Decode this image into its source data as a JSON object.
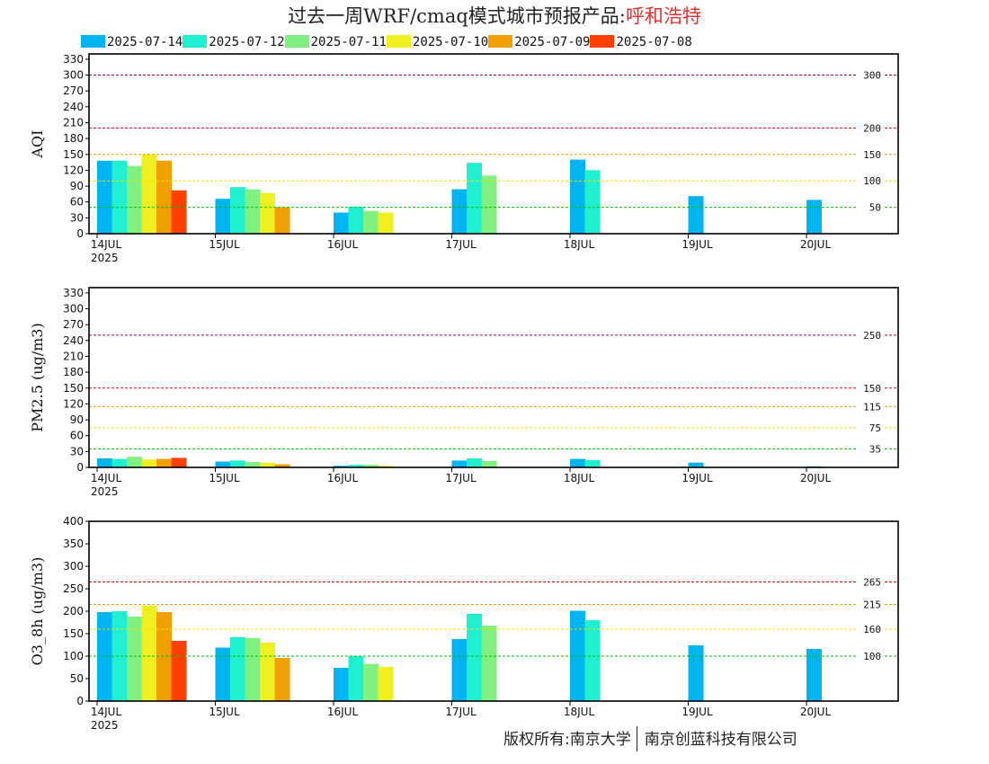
{
  "title": {
    "prefix": "过去一周WRF/cmaq模式城市预报产品:",
    "city": "呼和浩特"
  },
  "footer": {
    "left": "版权所有:南京大学",
    "right": "南京创蓝科技有限公司"
  },
  "colors": {
    "forecast_runs": [
      "#00b4f0",
      "#20f0d0",
      "#80f080",
      "#f0f020",
      "#f0a000",
      "#ff4000"
    ],
    "threshold_lines": {
      "green": "#00c000",
      "yellow": "#f0e000",
      "orange": "#f0a000",
      "red": "#e00000",
      "purple": "#a00060"
    }
  },
  "chart_data": [
    {
      "type": "bar",
      "ylabel": "AQI",
      "ylim": [
        0,
        340
      ],
      "yticks": [
        0,
        30,
        60,
        90,
        120,
        150,
        180,
        210,
        240,
        270,
        300,
        330
      ],
      "x_tick_labels": [
        "14JUL",
        "15JUL",
        "16JUL",
        "17JUL",
        "18JUL",
        "19JUL",
        "20JUL"
      ],
      "x_year_label": "2025",
      "legend": [
        "2025-07-14",
        "2025-07-12",
        "2025-07-11",
        "2025-07-10",
        "2025-07-09",
        "2025-07-08"
      ],
      "thresholds": [
        {
          "value": 50,
          "label": "50",
          "color": "green"
        },
        {
          "value": 100,
          "label": "100",
          "color": "yellow"
        },
        {
          "value": 150,
          "label": "150",
          "color": "orange"
        },
        {
          "value": 200,
          "label": "200",
          "color": "red"
        },
        {
          "value": 300,
          "label": "300",
          "color": "purple"
        }
      ],
      "series": [
        {
          "name": "2025-07-14",
          "values": [
            138,
            66,
            40,
            84,
            140,
            71,
            64
          ]
        },
        {
          "name": "2025-07-12",
          "values": [
            138,
            88,
            51,
            134,
            120,
            null,
            null
          ]
        },
        {
          "name": "2025-07-11",
          "values": [
            128,
            84,
            43,
            110,
            null,
            null,
            null
          ]
        },
        {
          "name": "2025-07-10",
          "values": [
            150,
            77,
            40,
            null,
            null,
            null,
            null
          ]
        },
        {
          "name": "2025-07-09",
          "values": [
            138,
            50,
            null,
            null,
            null,
            null,
            null
          ]
        },
        {
          "name": "2025-07-08",
          "values": [
            82,
            null,
            null,
            null,
            null,
            null,
            null
          ]
        }
      ]
    },
    {
      "type": "bar",
      "ylabel": "PM2.5 (ug/m3)",
      "ylim": [
        0,
        340
      ],
      "yticks": [
        0,
        30,
        60,
        90,
        120,
        150,
        180,
        210,
        240,
        270,
        300,
        330
      ],
      "x_tick_labels": [
        "14JUL",
        "15JUL",
        "16JUL",
        "17JUL",
        "18JUL",
        "19JUL",
        "20JUL"
      ],
      "x_year_label": "2025",
      "thresholds": [
        {
          "value": 35,
          "label": "35",
          "color": "green"
        },
        {
          "value": 75,
          "label": "75",
          "color": "yellow"
        },
        {
          "value": 115,
          "label": "115",
          "color": "orange"
        },
        {
          "value": 150,
          "label": "150",
          "color": "red"
        },
        {
          "value": 250,
          "label": "250",
          "color": "purple"
        }
      ],
      "series": [
        {
          "name": "2025-07-14",
          "values": [
            17,
            11,
            3,
            13,
            16,
            9,
            2
          ]
        },
        {
          "name": "2025-07-12",
          "values": [
            16,
            13,
            5,
            17,
            14,
            null,
            null
          ]
        },
        {
          "name": "2025-07-11",
          "values": [
            20,
            10,
            5,
            12,
            null,
            null,
            null
          ]
        },
        {
          "name": "2025-07-10",
          "values": [
            15,
            9,
            3,
            null,
            null,
            null,
            null
          ]
        },
        {
          "name": "2025-07-09",
          "values": [
            16,
            6,
            null,
            null,
            null,
            null,
            null
          ]
        },
        {
          "name": "2025-07-08",
          "values": [
            18,
            null,
            null,
            null,
            null,
            null,
            null
          ]
        }
      ]
    },
    {
      "type": "bar",
      "ylabel": "O3_8h (ug/m3)",
      "ylim": [
        0,
        400
      ],
      "yticks": [
        0,
        50,
        100,
        150,
        200,
        250,
        300,
        350,
        400
      ],
      "x_tick_labels": [
        "14JUL",
        "15JUL",
        "16JUL",
        "17JUL",
        "18JUL",
        "19JUL",
        "20JUL"
      ],
      "x_year_label": "2025",
      "thresholds": [
        {
          "value": 100,
          "label": "100",
          "color": "green"
        },
        {
          "value": 160,
          "label": "160",
          "color": "yellow"
        },
        {
          "value": 215,
          "label": "215",
          "color": "orange"
        },
        {
          "value": 265,
          "label": "265",
          "color": "red"
        }
      ],
      "series": [
        {
          "name": "2025-07-14",
          "values": [
            198,
            119,
            74,
            138,
            201,
            124,
            116
          ]
        },
        {
          "name": "2025-07-12",
          "values": [
            200,
            142,
            100,
            194,
            180,
            null,
            null
          ]
        },
        {
          "name": "2025-07-11",
          "values": [
            188,
            140,
            83,
            168,
            null,
            null,
            null
          ]
        },
        {
          "name": "2025-07-10",
          "values": [
            212,
            130,
            76,
            null,
            null,
            null,
            null
          ]
        },
        {
          "name": "2025-07-09",
          "values": [
            198,
            96,
            null,
            null,
            null,
            null,
            null
          ]
        },
        {
          "name": "2025-07-08",
          "values": [
            134,
            null,
            null,
            null,
            null,
            null,
            null
          ]
        }
      ]
    }
  ]
}
